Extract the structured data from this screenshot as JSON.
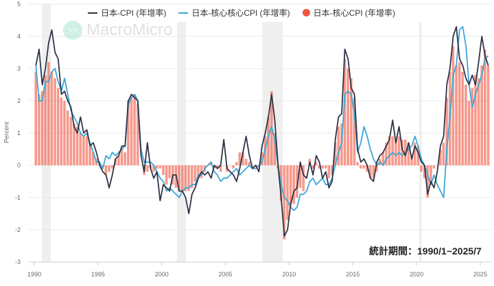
{
  "chart_data": {
    "type": "bar+line",
    "title": "",
    "xlabel": "",
    "ylabel": "Percent",
    "ylim": [
      -3,
      5
    ],
    "yticks": [
      "5",
      "4",
      "3",
      "2",
      "1",
      "0",
      "-1",
      "-2",
      "-3"
    ],
    "xticks": [
      "1990",
      "1995",
      "2000",
      "2005",
      "2010",
      "2015",
      "2020",
      "2025"
    ],
    "grid": true,
    "legend_position": "top",
    "watermark": "MacroMicro",
    "annotation": "統計期間：1990/1~2025/7",
    "recession_bands": [
      [
        1990.6,
        1991.3
      ],
      [
        2001.2,
        2001.9
      ],
      [
        2007.9,
        2009.5
      ],
      [
        2020.2,
        2020.4
      ]
    ],
    "x": [
      "1990Q1",
      "1990Q2",
      "1990Q3",
      "1990Q4",
      "1991Q1",
      "1991Q2",
      "1991Q3",
      "1991Q4",
      "1992Q1",
      "1992Q2",
      "1992Q3",
      "1992Q4",
      "1993Q1",
      "1993Q2",
      "1993Q3",
      "1993Q4",
      "1994Q1",
      "1994Q2",
      "1994Q3",
      "1994Q4",
      "1995Q1",
      "1995Q2",
      "1995Q3",
      "1995Q4",
      "1996Q1",
      "1996Q2",
      "1996Q3",
      "1996Q4",
      "1997Q1",
      "1997Q2",
      "1997Q3",
      "1997Q4",
      "1998Q1",
      "1998Q2",
      "1998Q3",
      "1998Q4",
      "1999Q1",
      "1999Q2",
      "1999Q3",
      "1999Q4",
      "2000Q1",
      "2000Q2",
      "2000Q3",
      "2000Q4",
      "2001Q1",
      "2001Q2",
      "2001Q3",
      "2001Q4",
      "2002Q1",
      "2002Q2",
      "2002Q3",
      "2002Q4",
      "2003Q1",
      "2003Q2",
      "2003Q3",
      "2003Q4",
      "2004Q1",
      "2004Q2",
      "2004Q3",
      "2004Q4",
      "2005Q1",
      "2005Q2",
      "2005Q3",
      "2005Q4",
      "2006Q1",
      "2006Q2",
      "2006Q3",
      "2006Q4",
      "2007Q1",
      "2007Q2",
      "2007Q3",
      "2007Q4",
      "2008Q1",
      "2008Q2",
      "2008Q3",
      "2008Q4",
      "2009Q1",
      "2009Q2",
      "2009Q3",
      "2009Q4",
      "2010Q1",
      "2010Q2",
      "2010Q3",
      "2010Q4",
      "2011Q1",
      "2011Q2",
      "2011Q3",
      "2011Q4",
      "2012Q1",
      "2012Q2",
      "2012Q3",
      "2012Q4",
      "2013Q1",
      "2013Q2",
      "2013Q3",
      "2013Q4",
      "2014Q1",
      "2014Q2",
      "2014Q3",
      "2014Q4",
      "2015Q1",
      "2015Q2",
      "2015Q3",
      "2015Q4",
      "2016Q1",
      "2016Q2",
      "2016Q3",
      "2016Q4",
      "2017Q1",
      "2017Q2",
      "2017Q3",
      "2017Q4",
      "2018Q1",
      "2018Q2",
      "2018Q3",
      "2018Q4",
      "2019Q1",
      "2019Q2",
      "2019Q3",
      "2019Q4",
      "2020Q1",
      "2020Q2",
      "2020Q3",
      "2020Q4",
      "2021Q1",
      "2021Q2",
      "2021Q3",
      "2021Q4",
      "2022Q1",
      "2022Q2",
      "2022Q3",
      "2022Q4",
      "2023Q1",
      "2023Q2",
      "2023Q3",
      "2023Q4",
      "2024Q1",
      "2024Q2",
      "2024Q3",
      "2024Q4",
      "2025Q1",
      "2025Q2",
      "2025Q3"
    ],
    "series": [
      {
        "name": "日本-核心CPI (年增率)",
        "type": "bar",
        "color": "#f0553f",
        "values": [
          2.9,
          2.2,
          2.3,
          2.8,
          3.2,
          2.9,
          2.7,
          2.4,
          2.1,
          2.0,
          1.7,
          1.5,
          1.3,
          1.2,
          1.0,
          0.9,
          0.9,
          0.6,
          0.4,
          0.2,
          0.0,
          -0.1,
          -0.3,
          -0.2,
          -0.1,
          0.2,
          0.3,
          0.5,
          0.4,
          2.0,
          2.1,
          2.2,
          1.9,
          0.0,
          -0.3,
          -0.2,
          -0.1,
          -0.2,
          -0.1,
          -0.1,
          -0.3,
          -0.6,
          -0.4,
          -0.6,
          -0.7,
          -0.8,
          -0.8,
          -0.8,
          -0.8,
          -0.7,
          -0.5,
          -0.4,
          -0.4,
          -0.2,
          0.0,
          0.1,
          -0.1,
          -0.1,
          -0.2,
          0.0,
          -0.2,
          0.0,
          -0.1,
          0.1,
          0.4,
          0.4,
          0.2,
          0.1,
          0.0,
          0.0,
          0.0,
          0.4,
          0.9,
          1.5,
          2.3,
          1.0,
          -0.1,
          -1.1,
          -2.3,
          -1.7,
          -1.2,
          -1.2,
          -1.0,
          -0.7,
          -0.8,
          0.0,
          0.2,
          -0.1,
          0.1,
          -0.1,
          -0.1,
          -0.1,
          -0.4,
          -0.3,
          0.7,
          1.2,
          1.3,
          3.3,
          3.0,
          2.7,
          2.1,
          0.1,
          -0.1,
          -0.1,
          -0.2,
          -0.4,
          -0.4,
          -0.2,
          0.2,
          0.4,
          0.7,
          0.9,
          0.9,
          0.8,
          0.9,
          0.8,
          0.8,
          0.7,
          0.3,
          0.7,
          0.6,
          -0.2,
          -0.4,
          -1.0,
          -0.5,
          -0.1,
          0.0,
          0.5,
          0.7,
          2.1,
          2.9,
          3.7,
          3.1,
          3.2,
          2.9,
          2.5,
          2.0,
          2.4,
          2.8,
          2.7,
          3.1,
          3.6,
          3.1
        ]
      },
      {
        "name": "日本-CPI (年增率)",
        "type": "line",
        "color": "#2f3447",
        "values": [
          3.1,
          3.6,
          2.5,
          3.0,
          3.8,
          4.2,
          3.5,
          3.3,
          2.2,
          2.3,
          2.0,
          1.8,
          1.2,
          1.0,
          1.5,
          1.0,
          1.1,
          0.6,
          0.7,
          0.4,
          0.0,
          -0.2,
          -0.3,
          -0.7,
          -0.3,
          0.2,
          0.3,
          0.6,
          0.6,
          2.0,
          2.2,
          2.1,
          2.0,
          0.3,
          -0.2,
          0.7,
          -0.1,
          -0.4,
          -0.2,
          -1.1,
          -0.6,
          -0.7,
          -0.8,
          -0.3,
          -0.3,
          -0.8,
          -0.8,
          -1.0,
          -1.5,
          -0.9,
          -0.7,
          -0.4,
          -0.2,
          -0.3,
          -0.2,
          -0.4,
          0.0,
          -0.1,
          0.0,
          0.8,
          -0.1,
          -0.2,
          -0.3,
          -0.5,
          -0.1,
          0.4,
          0.9,
          0.3,
          -0.1,
          0.0,
          -0.2,
          0.6,
          1.0,
          1.5,
          2.2,
          1.4,
          0.0,
          -1.0,
          -2.2,
          -2.0,
          -1.2,
          -0.8,
          -0.7,
          0.1,
          -0.3,
          -0.4,
          0.1,
          -0.3,
          0.3,
          0.1,
          -0.4,
          -0.2,
          -0.7,
          -0.5,
          0.8,
          1.5,
          1.6,
          3.6,
          3.3,
          2.4,
          2.2,
          0.5,
          0.1,
          0.2,
          0.0,
          -0.4,
          -0.5,
          0.1,
          0.3,
          0.4,
          0.6,
          0.8,
          1.4,
          0.7,
          1.2,
          0.5,
          0.3,
          0.7,
          0.2,
          0.6,
          0.4,
          0.1,
          0.0,
          -0.9,
          -0.5,
          -0.7,
          -0.2,
          0.6,
          0.9,
          2.5,
          3.0,
          4.0,
          4.3,
          3.3,
          3.1,
          2.7,
          2.5,
          2.8,
          2.5,
          3.2,
          4.0,
          3.4,
          3.1
        ]
      },
      {
        "name": "日本-核心核心CPI (年增率)",
        "type": "line",
        "color": "#3aa6d8",
        "values": [
          3.1,
          2.0,
          2.0,
          2.6,
          2.6,
          2.9,
          3.0,
          2.6,
          2.3,
          2.7,
          2.2,
          1.7,
          1.5,
          1.3,
          1.0,
          0.9,
          1.0,
          0.7,
          0.4,
          0.1,
          0.1,
          -0.1,
          0.3,
          0.2,
          0.4,
          0.3,
          0.4,
          0.5,
          0.6,
          1.9,
          2.1,
          2.2,
          2.0,
          0.5,
          0.1,
          0.1,
          0.1,
          0.0,
          -0.2,
          -0.4,
          -0.5,
          -0.8,
          -0.7,
          -0.8,
          -0.9,
          -1.0,
          -0.8,
          -0.7,
          -0.7,
          -0.6,
          -0.6,
          -0.3,
          -0.3,
          -0.1,
          0.0,
          0.1,
          -0.2,
          -0.3,
          -0.5,
          -0.4,
          -0.4,
          -0.3,
          -0.2,
          -0.1,
          -0.3,
          -0.2,
          -0.1,
          0.0,
          -0.1,
          -0.1,
          0.0,
          0.1,
          0.5,
          0.9,
          1.2,
          0.8,
          0.0,
          -0.6,
          -1.0,
          -1.1,
          -1.3,
          -1.4,
          -1.3,
          -0.9,
          -0.9,
          -0.8,
          -0.5,
          -0.4,
          -0.6,
          -0.5,
          -0.4,
          -0.6,
          -0.6,
          -0.4,
          0.0,
          0.4,
          0.7,
          2.2,
          2.3,
          2.2,
          1.6,
          0.4,
          0.7,
          1.2,
          0.9,
          0.5,
          0.2,
          0.0,
          0.1,
          0.0,
          0.2,
          0.3,
          0.4,
          0.3,
          0.4,
          0.3,
          0.4,
          0.5,
          0.6,
          0.9,
          0.6,
          0.2,
          0.0,
          -0.3,
          -0.6,
          -0.3,
          -0.6,
          -0.8,
          -1.0,
          0.5,
          1.5,
          2.8,
          3.1,
          4.2,
          4.3,
          3.7,
          2.5,
          1.8,
          2.2,
          2.5,
          2.8,
          3.3,
          3.4
        ]
      }
    ]
  },
  "legend": {
    "cpi": "日本-CPI (年增率)",
    "core_core": "日本-核心核心CPI (年增率)",
    "core": "日本-核心CPI (年增率)"
  }
}
